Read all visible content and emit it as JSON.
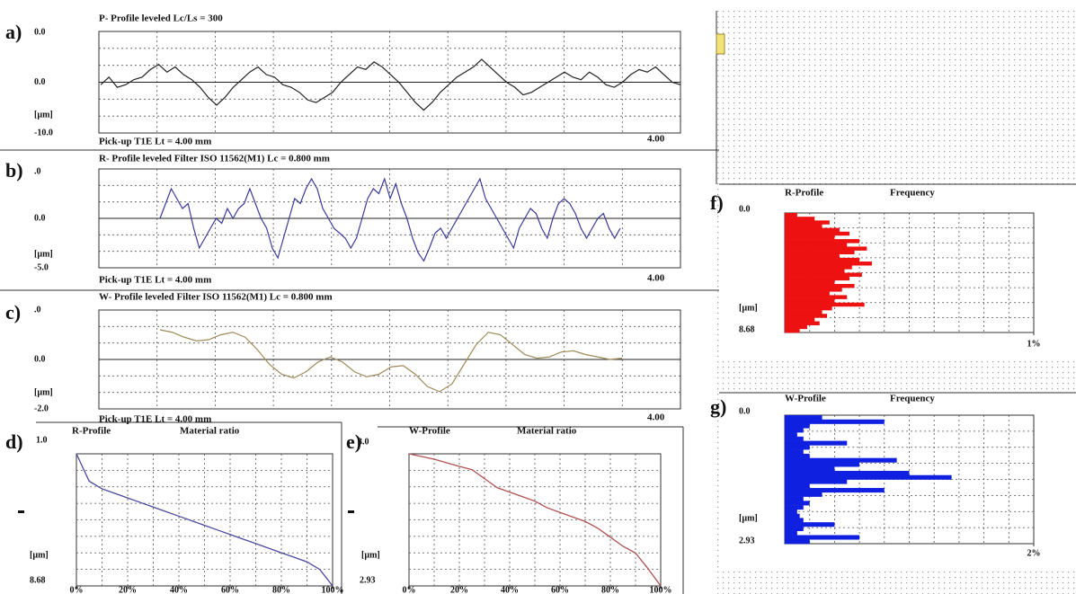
{
  "chart_data": [
    {
      "type": "line",
      "label": "a)",
      "title": "P- Profile  leveled  Lc/Ls = 300",
      "footer": "Pick-up T1E   Lt = 4.00  mm",
      "x_end_label": "4.00",
      "top_label": "0.0",
      "unit": "[µm]",
      "ylim": [
        -10,
        10
      ],
      "yticks": [
        {
          "value": 0,
          "label": "0.0"
        },
        {
          "value": -10,
          "label": "-10.0"
        }
      ],
      "color": "#222222",
      "values": [
        -0.5,
        1,
        -1,
        -0.5,
        0.5,
        1,
        2.5,
        3.5,
        2,
        3,
        1.5,
        0.5,
        -1,
        -3,
        -4.5,
        -3,
        -1,
        0.5,
        2,
        3,
        1.5,
        1,
        -0.5,
        -1,
        -2,
        -3.5,
        -4,
        -3,
        -2,
        0,
        1.5,
        3,
        2.5,
        4,
        3,
        1.5,
        0,
        -2,
        -4,
        -5.5,
        -4,
        -2,
        -0.5,
        1,
        2,
        3,
        4.5,
        3,
        1.5,
        0,
        -1,
        -2.5,
        -2,
        -1,
        0,
        1,
        2,
        1,
        0.5,
        2,
        1,
        -0.5,
        -1,
        0,
        1.5,
        2.5,
        2,
        3,
        1.5,
        0,
        -0.5
      ]
    },
    {
      "type": "line",
      "label": "b)",
      "title": "R- Profile  leveled  Filter  ISO 11562(M1)  Lc = 0.800  mm",
      "footer": "Pick-up T1E   Lt = 4.00  mm",
      "x_end_label": "4.00",
      "top_label": ".0",
      "unit": "[µm]",
      "ylim": [
        -5,
        5
      ],
      "yticks": [
        {
          "value": 0,
          "label": "0.0"
        },
        {
          "value": -5,
          "label": "-5.0"
        }
      ],
      "color": "#3a3a9a",
      "values": [
        0,
        1.5,
        3,
        2,
        1,
        1.5,
        -1,
        -3,
        -2,
        -1,
        0,
        -0.5,
        1,
        0,
        1,
        1.5,
        3,
        1.5,
        0,
        -1,
        -3,
        -4,
        -2,
        0,
        2,
        1.5,
        3,
        4,
        3,
        1,
        0,
        -1,
        -1.5,
        -2,
        -3,
        -2,
        0,
        2,
        3,
        2.5,
        4,
        2,
        3.5,
        1.5,
        0,
        -2,
        -3.5,
        -4.3,
        -3,
        -1.5,
        -1,
        -2,
        -1,
        0,
        1,
        2,
        3,
        4,
        2,
        1,
        0,
        -1,
        -2,
        -3,
        -1,
        0,
        1,
        0.5,
        -1,
        -2,
        0,
        1.5,
        2,
        1.5,
        0.5,
        -1,
        -2,
        -1,
        0,
        0.5,
        -1,
        -2,
        -1
      ]
    },
    {
      "type": "line",
      "label": "c)",
      "title": "W- Profile  leveled  Filter  ISO 11562(M1)  Lc = 0.800  mm",
      "footer": "Pick-up T1E   Lt = 4.00  mm",
      "x_end_label": "4.00",
      "top_label": ".0",
      "unit": "[µm]",
      "ylim": [
        -2,
        2
      ],
      "yticks": [
        {
          "value": 0,
          "label": "0.0"
        },
        {
          "value": -2,
          "label": "-2.0"
        }
      ],
      "color": "#a08a5a",
      "values": [
        1.2,
        1.1,
        0.9,
        0.75,
        0.8,
        1.0,
        1.1,
        0.9,
        0.4,
        -0.2,
        -0.6,
        -0.75,
        -0.5,
        -0.1,
        0.1,
        -0.1,
        -0.5,
        -0.7,
        -0.6,
        -0.3,
        -0.25,
        -0.6,
        -1.1,
        -1.3,
        -1.0,
        -0.2,
        0.6,
        1.1,
        1.0,
        0.6,
        0.2,
        0.05,
        0.1,
        0.3,
        0.35,
        0.2,
        0.1,
        0.0,
        0.05
      ]
    },
    {
      "type": "material-ratio",
      "label": "d)",
      "title": "R-Profile",
      "subtitle": "Material ratio",
      "top_label": "1.0",
      "unit": "[µm]",
      "ylim": [
        8.68,
        0
      ],
      "yticks": [
        8.68
      ],
      "xlim": [
        0,
        100
      ],
      "xticks": [
        {
          "value": 0,
          "label": "0%"
        },
        {
          "value": 20,
          "label": "20%"
        },
        {
          "value": 40,
          "label": "40%"
        },
        {
          "value": 60,
          "label": "60%"
        },
        {
          "value": 80,
          "label": "80%"
        },
        {
          "value": 100,
          "label": "100%"
        }
      ],
      "color": "#4a4aa0",
      "x": [
        0,
        5,
        10,
        15,
        20,
        25,
        30,
        35,
        40,
        45,
        50,
        55,
        60,
        65,
        70,
        75,
        80,
        85,
        90,
        95,
        100
      ],
      "values": [
        0,
        1.8,
        2.3,
        2.6,
        2.9,
        3.2,
        3.5,
        3.8,
        4.1,
        4.4,
        4.7,
        5.0,
        5.3,
        5.6,
        5.9,
        6.2,
        6.5,
        6.8,
        7.1,
        7.6,
        8.68
      ]
    },
    {
      "type": "material-ratio",
      "label": "e)",
      "title": "W-Profile",
      "subtitle": "Material ratio",
      "top_label": "3.0",
      "unit": "[µm]",
      "ylim": [
        2.93,
        0
      ],
      "yticks": [
        2.93
      ],
      "xlim": [
        0,
        100
      ],
      "xticks": [
        {
          "value": 0,
          "label": "0%"
        },
        {
          "value": 20,
          "label": "20%"
        },
        {
          "value": 40,
          "label": "40%"
        },
        {
          "value": 60,
          "label": "60%"
        },
        {
          "value": 80,
          "label": "80%"
        },
        {
          "value": 100,
          "label": "100%"
        }
      ],
      "color": "#b05050",
      "x": [
        0,
        5,
        10,
        15,
        20,
        25,
        30,
        35,
        40,
        45,
        50,
        55,
        60,
        65,
        70,
        75,
        80,
        85,
        90,
        95,
        100
      ],
      "values": [
        0,
        0.06,
        0.12,
        0.2,
        0.28,
        0.35,
        0.55,
        0.75,
        0.85,
        0.95,
        1.05,
        1.2,
        1.3,
        1.4,
        1.5,
        1.65,
        1.85,
        2.05,
        2.2,
        2.55,
        2.93
      ]
    },
    {
      "type": "histogram",
      "label": "f)",
      "title": "R-Profile",
      "subtitle": "Frequency",
      "unit": "[µm]",
      "ylim": [
        0,
        8.68
      ],
      "yticks": [
        {
          "value": 0,
          "label": "0.0"
        },
        8.68
      ],
      "xlim": [
        0,
        1
      ],
      "xticks": [
        {
          "value": 1,
          "label": "1%"
        }
      ],
      "color": "#ee1111",
      "values": [
        0.05,
        0.12,
        0.18,
        0.15,
        0.22,
        0.26,
        0.2,
        0.3,
        0.25,
        0.33,
        0.28,
        0.22,
        0.3,
        0.35,
        0.27,
        0.24,
        0.31,
        0.26,
        0.2,
        0.28,
        0.23,
        0.18,
        0.25,
        0.2,
        0.32,
        0.19,
        0.15,
        0.17,
        0.12,
        0.14,
        0.09,
        0.06
      ]
    },
    {
      "type": "histogram",
      "label": "g)",
      "title": "W-Profile",
      "subtitle": "Frequency",
      "unit": "[µm]",
      "ylim": [
        0,
        2.93
      ],
      "yticks": [
        {
          "value": 0,
          "label": "0.0"
        },
        2.93
      ],
      "xlim": [
        0,
        2
      ],
      "xticks": [
        {
          "value": 2,
          "label": "2%"
        }
      ],
      "color": "#1020e0",
      "values": [
        0.3,
        0.8,
        0.2,
        0.15,
        0.1,
        0.15,
        0.5,
        0.2,
        0.15,
        0.2,
        0.9,
        0.6,
        0.4,
        1.0,
        1.34,
        0.5,
        0.2,
        0.8,
        0.3,
        0.15,
        0.2,
        0.15,
        0.1,
        0.12,
        0.15,
        0.4,
        0.15,
        0.1,
        0.6,
        0.2
      ]
    }
  ]
}
